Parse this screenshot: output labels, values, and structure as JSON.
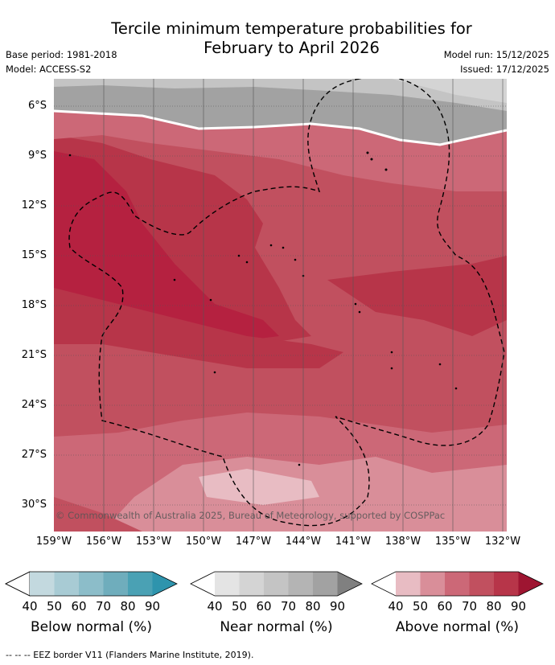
{
  "title_line1": "Tercile minimum temperature probabilities for",
  "title_line2": "February to April 2026",
  "base_period": "Base period: 1981-2018",
  "model": "Model: ACCESS-S2",
  "model_run": "Model run: 15/12/2025",
  "issued": "Issued: 17/12/2025",
  "copyright": "© Commonwealth of Australia 2025, Bureau of Meteorology, supported by COSPPac",
  "lat_labels": [
    "6°S",
    "9°S",
    "12°S",
    "15°S",
    "18°S",
    "21°S",
    "24°S",
    "27°S",
    "30°S"
  ],
  "lon_labels": [
    "159°W",
    "156°W",
    "153°W",
    "150°W",
    "147°W",
    "144°W",
    "141°W",
    "138°W",
    "135°W",
    "132°W"
  ],
  "colorbars": {
    "below": {
      "label": "Below normal (%)",
      "colors": [
        "#ffffff",
        "#c3d9df",
        "#a8cbd4",
        "#8cbdc9",
        "#6fadbc",
        "#4aa1b4",
        "#2e94ad"
      ]
    },
    "near": {
      "label": "Near normal (%)",
      "colors": [
        "#ffffff",
        "#e4e4e4",
        "#d4d4d4",
        "#c4c4c4",
        "#b4b4b4",
        "#a2a2a2",
        "#808080"
      ]
    },
    "above": {
      "label": "Above normal (%)",
      "colors": [
        "#ffffff",
        "#e8bcc3",
        "#d98e99",
        "#cc6877",
        "#c1505f",
        "#b73549",
        "#9e1531"
      ]
    },
    "ticks": [
      "40",
      "50",
      "60",
      "70",
      "80",
      "90"
    ]
  },
  "footer": "--  --  -- EEZ border V11 (Flanders Marine Institute, 2019)."
}
